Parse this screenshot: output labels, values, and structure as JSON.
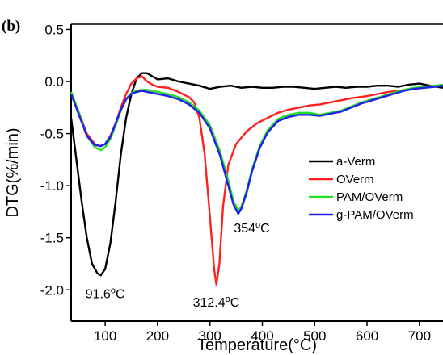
{
  "chart_data": {
    "type": "line",
    "panel_label": "(b)",
    "xlabel": "Temperature(°C)",
    "ylabel": "DTG(%/min)",
    "xlim": [
      35,
      745
    ],
    "ylim": [
      -2.3,
      0.55
    ],
    "xticks": [
      100,
      200,
      300,
      400,
      500,
      600,
      700
    ],
    "yticks": [
      -2.0,
      -1.5,
      -1.0,
      -0.5,
      0.0,
      0.5
    ],
    "ytick_labels": [
      "-2.0",
      "-1.5",
      "-1.0",
      "-0.5",
      "0.0",
      "0.5"
    ],
    "grid": false,
    "legend_position": "right",
    "series": [
      {
        "name": "a-Verm",
        "color": "#000000",
        "points": [
          [
            35,
            -0.35
          ],
          [
            45,
            -0.75
          ],
          [
            55,
            -1.15
          ],
          [
            65,
            -1.5
          ],
          [
            75,
            -1.75
          ],
          [
            85,
            -1.84
          ],
          [
            91.6,
            -1.86
          ],
          [
            100,
            -1.8
          ],
          [
            110,
            -1.55
          ],
          [
            120,
            -1.15
          ],
          [
            130,
            -0.7
          ],
          [
            140,
            -0.35
          ],
          [
            150,
            -0.12
          ],
          [
            160,
            0.03
          ],
          [
            170,
            0.08
          ],
          [
            180,
            0.08
          ],
          [
            190,
            0.05
          ],
          [
            200,
            0.02
          ],
          [
            220,
            0.03
          ],
          [
            240,
            0.0
          ],
          [
            260,
            -0.02
          ],
          [
            280,
            -0.04
          ],
          [
            300,
            -0.07
          ],
          [
            320,
            -0.05
          ],
          [
            340,
            -0.04
          ],
          [
            360,
            -0.06
          ],
          [
            380,
            -0.05
          ],
          [
            400,
            -0.06
          ],
          [
            420,
            -0.06
          ],
          [
            440,
            -0.05
          ],
          [
            460,
            -0.05
          ],
          [
            480,
            -0.06
          ],
          [
            500,
            -0.07
          ],
          [
            520,
            -0.06
          ],
          [
            540,
            -0.05
          ],
          [
            560,
            -0.06
          ],
          [
            580,
            -0.05
          ],
          [
            600,
            -0.05
          ],
          [
            620,
            -0.04
          ],
          [
            640,
            -0.04
          ],
          [
            660,
            -0.05
          ],
          [
            680,
            -0.03
          ],
          [
            700,
            -0.02
          ],
          [
            720,
            -0.04
          ],
          [
            745,
            -0.06
          ]
        ]
      },
      {
        "name": "OVerm",
        "color": "#ff2020",
        "points": [
          [
            35,
            -0.1
          ],
          [
            50,
            -0.3
          ],
          [
            65,
            -0.5
          ],
          [
            80,
            -0.6
          ],
          [
            90,
            -0.62
          ],
          [
            100,
            -0.6
          ],
          [
            110,
            -0.52
          ],
          [
            120,
            -0.4
          ],
          [
            130,
            -0.25
          ],
          [
            140,
            -0.12
          ],
          [
            150,
            -0.02
          ],
          [
            160,
            0.03
          ],
          [
            170,
            0.05
          ],
          [
            180,
            0.0
          ],
          [
            190,
            -0.03
          ],
          [
            200,
            -0.05
          ],
          [
            220,
            -0.06
          ],
          [
            240,
            -0.1
          ],
          [
            260,
            -0.15
          ],
          [
            270,
            -0.2
          ],
          [
            280,
            -0.35
          ],
          [
            290,
            -0.7
          ],
          [
            300,
            -1.3
          ],
          [
            308,
            -1.8
          ],
          [
            312.4,
            -1.95
          ],
          [
            318,
            -1.75
          ],
          [
            325,
            -1.2
          ],
          [
            335,
            -0.8
          ],
          [
            350,
            -0.6
          ],
          [
            370,
            -0.48
          ],
          [
            390,
            -0.4
          ],
          [
            410,
            -0.35
          ],
          [
            430,
            -0.3
          ],
          [
            450,
            -0.27
          ],
          [
            470,
            -0.25
          ],
          [
            490,
            -0.23
          ],
          [
            510,
            -0.22
          ],
          [
            530,
            -0.2
          ],
          [
            550,
            -0.18
          ],
          [
            570,
            -0.16
          ],
          [
            600,
            -0.14
          ],
          [
            620,
            -0.12
          ],
          [
            640,
            -0.1
          ],
          [
            660,
            -0.09
          ],
          [
            680,
            -0.08
          ],
          [
            700,
            -0.06
          ],
          [
            720,
            -0.05
          ],
          [
            745,
            -0.04
          ]
        ]
      },
      {
        "name": "PAM/OVerm",
        "color": "#22dd22",
        "points": [
          [
            35,
            -0.1
          ],
          [
            50,
            -0.3
          ],
          [
            65,
            -0.52
          ],
          [
            80,
            -0.63
          ],
          [
            92,
            -0.66
          ],
          [
            100,
            -0.63
          ],
          [
            110,
            -0.55
          ],
          [
            120,
            -0.42
          ],
          [
            130,
            -0.28
          ],
          [
            140,
            -0.17
          ],
          [
            150,
            -0.11
          ],
          [
            160,
            -0.09
          ],
          [
            170,
            -0.08
          ],
          [
            180,
            -0.08
          ],
          [
            190,
            -0.09
          ],
          [
            200,
            -0.1
          ],
          [
            220,
            -0.12
          ],
          [
            240,
            -0.15
          ],
          [
            260,
            -0.2
          ],
          [
            280,
            -0.28
          ],
          [
            300,
            -0.42
          ],
          [
            320,
            -0.68
          ],
          [
            335,
            -0.95
          ],
          [
            345,
            -1.15
          ],
          [
            354,
            -1.24
          ],
          [
            360,
            -1.2
          ],
          [
            370,
            -1.05
          ],
          [
            380,
            -0.85
          ],
          [
            395,
            -0.62
          ],
          [
            410,
            -0.47
          ],
          [
            430,
            -0.36
          ],
          [
            450,
            -0.32
          ],
          [
            470,
            -0.3
          ],
          [
            490,
            -0.3
          ],
          [
            510,
            -0.32
          ],
          [
            530,
            -0.3
          ],
          [
            550,
            -0.28
          ],
          [
            570,
            -0.24
          ],
          [
            590,
            -0.2
          ],
          [
            610,
            -0.17
          ],
          [
            630,
            -0.14
          ],
          [
            650,
            -0.11
          ],
          [
            670,
            -0.08
          ],
          [
            690,
            -0.06
          ],
          [
            710,
            -0.05
          ],
          [
            730,
            -0.04
          ],
          [
            745,
            -0.03
          ]
        ]
      },
      {
        "name": "g-PAM/OVerm",
        "color": "#2020ee",
        "points": [
          [
            35,
            -0.12
          ],
          [
            50,
            -0.32
          ],
          [
            65,
            -0.52
          ],
          [
            80,
            -0.61
          ],
          [
            92,
            -0.62
          ],
          [
            100,
            -0.6
          ],
          [
            110,
            -0.53
          ],
          [
            120,
            -0.4
          ],
          [
            130,
            -0.27
          ],
          [
            140,
            -0.17
          ],
          [
            150,
            -0.12
          ],
          [
            160,
            -0.1
          ],
          [
            170,
            -0.09
          ],
          [
            180,
            -0.1
          ],
          [
            190,
            -0.11
          ],
          [
            200,
            -0.12
          ],
          [
            220,
            -0.14
          ],
          [
            240,
            -0.17
          ],
          [
            260,
            -0.22
          ],
          [
            280,
            -0.3
          ],
          [
            300,
            -0.45
          ],
          [
            320,
            -0.72
          ],
          [
            335,
            -1.0
          ],
          [
            345,
            -1.18
          ],
          [
            354,
            -1.27
          ],
          [
            360,
            -1.22
          ],
          [
            370,
            -1.07
          ],
          [
            380,
            -0.87
          ],
          [
            395,
            -0.64
          ],
          [
            410,
            -0.49
          ],
          [
            430,
            -0.38
          ],
          [
            450,
            -0.34
          ],
          [
            470,
            -0.32
          ],
          [
            490,
            -0.32
          ],
          [
            510,
            -0.33
          ],
          [
            530,
            -0.31
          ],
          [
            550,
            -0.29
          ],
          [
            570,
            -0.25
          ],
          [
            590,
            -0.21
          ],
          [
            610,
            -0.18
          ],
          [
            630,
            -0.15
          ],
          [
            650,
            -0.12
          ],
          [
            670,
            -0.09
          ],
          [
            690,
            -0.07
          ],
          [
            710,
            -0.06
          ],
          [
            730,
            -0.05
          ],
          [
            745,
            -0.04
          ]
        ]
      }
    ],
    "annotations": [
      {
        "text": "91.6",
        "unit_sup": "o",
        "unit": "C",
        "x": 100,
        "y": -2.08
      },
      {
        "text": "312.4",
        "unit_sup": "o",
        "unit": "C",
        "x": 312,
        "y": -2.16
      },
      {
        "text": "354",
        "unit_sup": "o",
        "unit": "C",
        "x": 380,
        "y": -1.45
      }
    ]
  }
}
